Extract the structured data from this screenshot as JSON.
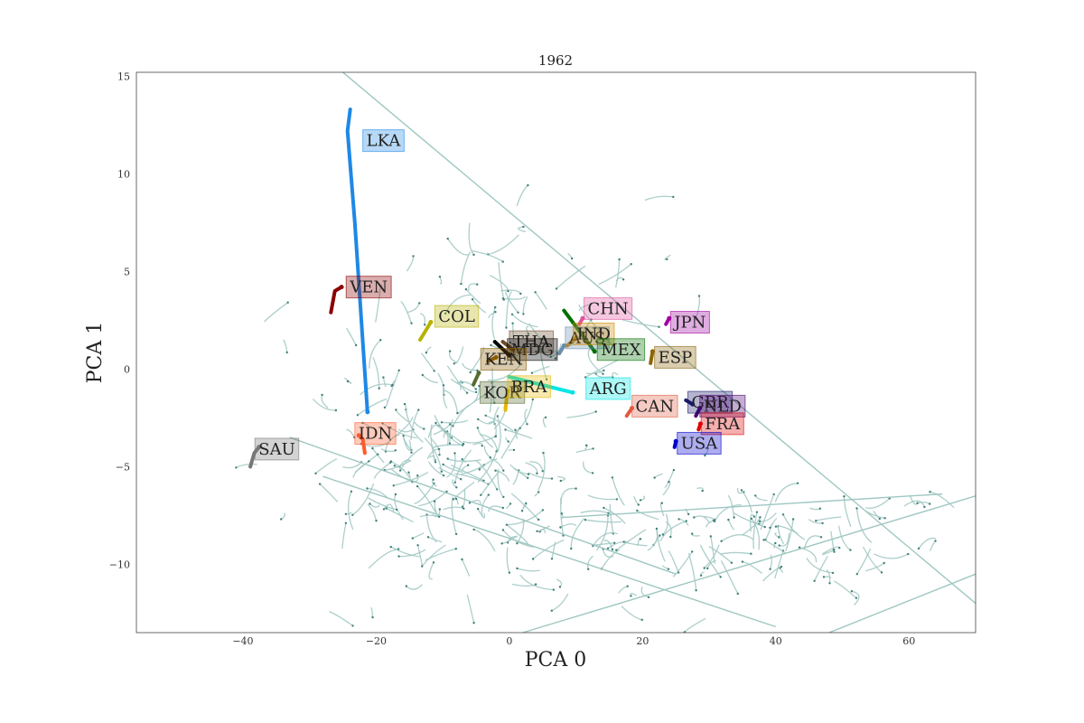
{
  "chart_data": {
    "type": "scatter",
    "title": "1962",
    "xlabel": "PCA 0",
    "ylabel": "PCA 1",
    "xlim": [
      -56,
      70
    ],
    "ylim": [
      -13.5,
      15.2
    ],
    "xticks": [
      -40,
      -20,
      0,
      20,
      40,
      60
    ],
    "yticks": [
      -10,
      -5,
      0,
      5,
      10,
      15
    ],
    "grid": false,
    "background_color": "#9fc7c2",
    "countries": [
      {
        "label": "LKA",
        "color": "#1e88e5",
        "path": [
          [
            -23.9,
            13.3
          ],
          [
            -24.3,
            12.2
          ],
          [
            -23.2,
            7.5
          ],
          [
            -21.3,
            -2.2
          ]
        ],
        "label_xy": [
          -22.0,
          11.7
        ]
      },
      {
        "label": "VEN",
        "color": "#8b0000",
        "path": [
          [
            -26.8,
            2.9
          ],
          [
            -26.2,
            4.0
          ],
          [
            -25.2,
            4.2
          ]
        ],
        "label_xy": [
          -24.5,
          4.2
        ]
      },
      {
        "label": "COL",
        "color": "#b7b200",
        "path": [
          [
            -13.4,
            1.5
          ],
          [
            -11.8,
            2.4
          ]
        ],
        "label_xy": [
          -11.2,
          2.7
        ]
      },
      {
        "label": "THA",
        "color": "#6b4a2a",
        "path": [
          [
            -1.0,
            1.4
          ],
          [
            0.5,
            1.0
          ]
        ],
        "label_xy": [
          0.0,
          1.4
        ]
      },
      {
        "label": "MDG",
        "color": "#000000",
        "path": [
          [
            -2.2,
            1.4
          ],
          [
            0.0,
            0.7
          ]
        ],
        "label_xy": [
          -0.3,
          1.0
        ]
      },
      {
        "label": "KEN",
        "color": "#8b5a00",
        "path": [
          [
            -3.2,
            0.4
          ],
          [
            -2.0,
            0.6
          ]
        ],
        "label_xy": [
          -4.3,
          0.5
        ]
      },
      {
        "label": "KOR",
        "color": "#556b2f",
        "path": [
          [
            -5.4,
            -0.8
          ],
          [
            -4.6,
            -0.2
          ]
        ],
        "label_xy": [
          -4.4,
          -1.2
        ]
      },
      {
        "label": "BRA",
        "color": "#e6b800",
        "path": [
          [
            -0.6,
            -2.1
          ],
          [
            -0.3,
            -1.1
          ]
        ],
        "label_xy": [
          -0.3,
          -0.9
        ]
      },
      {
        "label": "ARG",
        "color": "#00e5e5",
        "path": [
          [
            0.0,
            -0.4
          ],
          [
            9.5,
            -1.2
          ]
        ],
        "label_xy": [
          11.5,
          -1.0
        ]
      },
      {
        "label": "CHN",
        "color": "#e0559f",
        "path": [
          [
            10.5,
            2.3
          ],
          [
            11.0,
            2.6
          ]
        ],
        "label_xy": [
          11.2,
          3.1
        ]
      },
      {
        "label": "AUS",
        "color": "#6a8caf",
        "path": [
          [
            7.5,
            0.8
          ],
          [
            8.2,
            1.2
          ]
        ],
        "label_xy": [
          8.4,
          1.6
        ]
      },
      {
        "label": "IND",
        "color": "#cc8800",
        "path": [
          [
            8.7,
            1.2
          ],
          [
            10.0,
            1.6
          ]
        ],
        "label_xy": [
          9.6,
          1.8
        ]
      },
      {
        "label": "MEX",
        "color": "#007000",
        "path": [
          [
            8.2,
            3.0
          ],
          [
            12.8,
            0.9
          ]
        ],
        "label_xy": [
          13.2,
          1.0
        ]
      },
      {
        "label": "JPN",
        "color": "#a000a0",
        "path": [
          [
            23.5,
            2.3
          ],
          [
            24.0,
            2.6
          ]
        ],
        "label_xy": [
          24.2,
          2.4
        ]
      },
      {
        "label": "ESP",
        "color": "#8b6508",
        "path": [
          [
            21.2,
            0.3
          ],
          [
            21.5,
            0.9
          ]
        ],
        "label_xy": [
          21.8,
          0.6
        ]
      },
      {
        "label": "CAN",
        "color": "#e05a40",
        "path": [
          [
            17.6,
            -2.4
          ],
          [
            18.4,
            -2.0
          ]
        ],
        "label_xy": [
          18.4,
          -1.9
        ]
      },
      {
        "label": "GBR",
        "color": "#1a1a6e",
        "path": [
          [
            26.5,
            -1.6
          ],
          [
            27.5,
            -1.8
          ]
        ],
        "label_xy": [
          26.8,
          -1.7
        ]
      },
      {
        "label": "NLD",
        "color": "#4b0070",
        "path": [
          [
            28.0,
            -2.4
          ],
          [
            28.6,
            -2.0
          ]
        ],
        "label_xy": [
          28.6,
          -1.9
        ]
      },
      {
        "label": "FRA",
        "color": "#e00000",
        "path": [
          [
            28.4,
            -3.1
          ],
          [
            28.7,
            -2.8
          ]
        ],
        "label_xy": [
          28.8,
          -2.8
        ]
      },
      {
        "label": "USA",
        "color": "#0000cc",
        "path": [
          [
            24.8,
            -4.0
          ],
          [
            25.0,
            -3.7
          ]
        ],
        "label_xy": [
          25.2,
          -3.8
        ]
      },
      {
        "label": "IDN",
        "color": "#ff5a2a",
        "path": [
          [
            -21.7,
            -4.3
          ],
          [
            -22.0,
            -3.6
          ],
          [
            -22.6,
            -3.4
          ]
        ],
        "label_xy": [
          -23.2,
          -3.3
        ]
      },
      {
        "label": "SAU",
        "color": "#777777",
        "path": [
          [
            -38.9,
            -5.0
          ],
          [
            -38.3,
            -4.3
          ],
          [
            -37.6,
            -4.0
          ]
        ],
        "label_xy": [
          -38.2,
          -4.1
        ]
      }
    ]
  }
}
